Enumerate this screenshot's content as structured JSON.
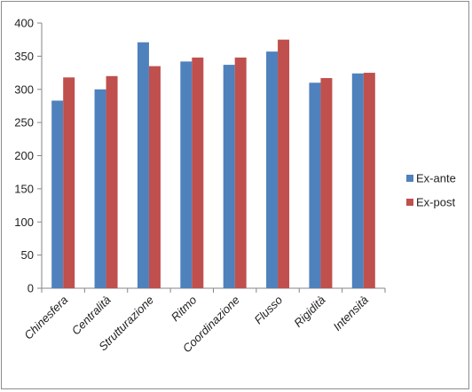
{
  "chart_data": {
    "type": "bar",
    "title": "",
    "xlabel": "",
    "ylabel": "",
    "categories": [
      "Chinesfera",
      "Centralità",
      "Strutturazione",
      "Ritmo",
      "Coordinazione",
      "Flusso",
      "Rigidità",
      "Intensità"
    ],
    "series": [
      {
        "name": "Ex-ante",
        "color": "#4f81bd",
        "values": [
          283,
          300,
          371,
          342,
          337,
          357,
          310,
          324
        ]
      },
      {
        "name": "Ex-post",
        "color": "#c0504d",
        "values": [
          318,
          320,
          335,
          348,
          348,
          375,
          317,
          325
        ]
      }
    ],
    "ylim": [
      0,
      400
    ],
    "yticks": [
      0,
      50,
      100,
      150,
      200,
      250,
      300,
      350,
      400
    ],
    "grid": false,
    "legend_position": "right"
  }
}
